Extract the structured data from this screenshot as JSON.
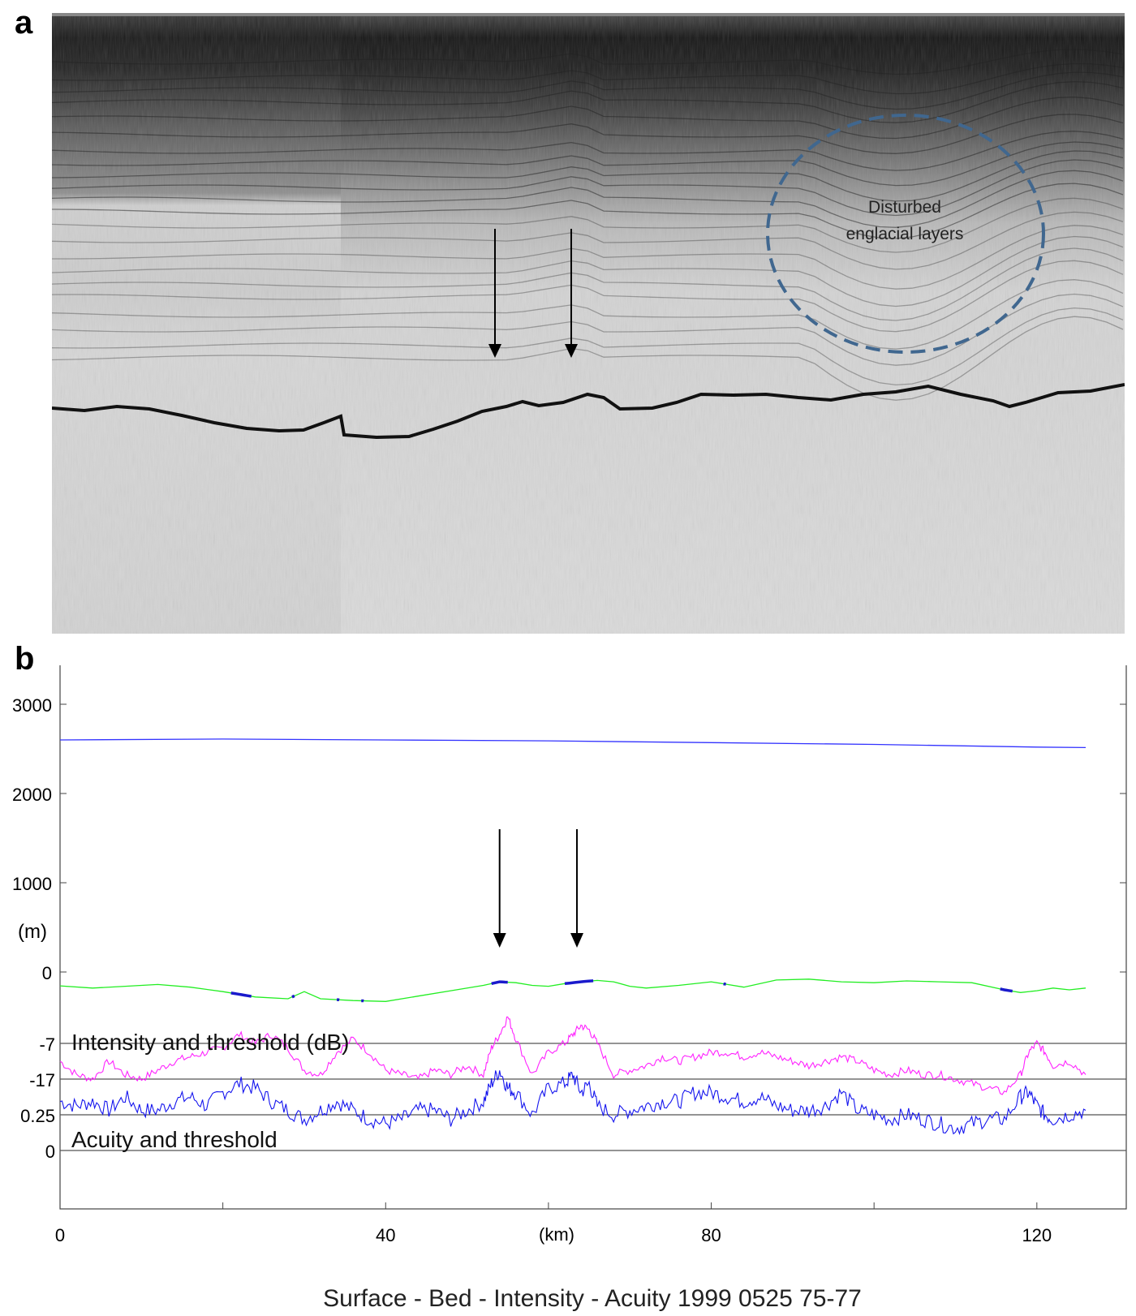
{
  "panel_a": {
    "letter": "a",
    "annotation": "Disturbed englacial layers",
    "annotation_lines": [
      "Disturbed",
      "englacial layers"
    ]
  },
  "panel_b": {
    "letter": "b"
  },
  "colors": {
    "surface": "#3333ff",
    "bed": "#22ee22",
    "bed_highlight": "#1a1acc",
    "intensity": "#ff22ff",
    "acuity": "#1515ee",
    "threshold": "#555555",
    "dashed_circle": "#40678f"
  },
  "chart_data": {
    "type": "line",
    "title": "Surface - Bed - Intensity - Acuity 1999 0525  75-77",
    "xlabel": "(km)",
    "ylabel": "(m)",
    "xlim": [
      0,
      126
    ],
    "ylim": [
      -2500,
      3500
    ],
    "x_ticks": [
      "0",
      "40",
      "80",
      "120"
    ],
    "x_tick_values": [
      0,
      40,
      80,
      120
    ],
    "y_ticks": [
      "3000",
      "2000",
      "1000",
      "0"
    ],
    "y_tick_values": [
      3000,
      2000,
      1000,
      0
    ],
    "grid": false,
    "series": [
      {
        "key": "surface",
        "x": [
          0,
          20,
          40,
          60,
          80,
          100,
          120,
          126
        ],
        "y": [
          2600,
          2610,
          2600,
          2590,
          2570,
          2550,
          2520,
          2515
        ]
      },
      {
        "key": "bed",
        "x": [
          0,
          4,
          8,
          12,
          16,
          20,
          24,
          28,
          30,
          32,
          36,
          40,
          44,
          48,
          52,
          54,
          56,
          58,
          60,
          62,
          64,
          66,
          68,
          70,
          72,
          76,
          80,
          84,
          88,
          92,
          96,
          100,
          104,
          108,
          112,
          116,
          118,
          120,
          122,
          124,
          126
        ],
        "y": [
          -155,
          -180,
          -160,
          -140,
          -170,
          -220,
          -280,
          -300,
          -220,
          -300,
          -320,
          -330,
          -270,
          -210,
          -150,
          -110,
          -120,
          -150,
          -160,
          -130,
          -110,
          -95,
          -110,
          -160,
          -180,
          -150,
          -110,
          -170,
          -90,
          -80,
          -110,
          -120,
          -100,
          -110,
          -120,
          -200,
          -230,
          -210,
          -180,
          -200,
          -180
        ]
      }
    ],
    "bed_highlight_segments": [
      [
        21,
        23.5
      ],
      [
        28.5,
        28.8
      ],
      [
        34,
        34.3
      ],
      [
        37,
        37.3
      ],
      [
        53,
        55
      ],
      [
        62,
        65.5
      ],
      [
        81.5,
        81.8
      ],
      [
        115.5,
        117
      ]
    ],
    "threshold_lines": [
      {
        "label": "-7",
        "y": -800
      },
      {
        "label": "-17",
        "y": -1200
      },
      {
        "label": "0.25",
        "y": -1600
      },
      {
        "label": "0",
        "y": -2000
      }
    ],
    "annotations": [
      "Intensity and threshold (dB)",
      "Acuity and threshold"
    ],
    "arrows_at_km": [
      54,
      63.5
    ],
    "intensity_profile": {
      "x": [
        0,
        2,
        4,
        6,
        8,
        10,
        12,
        14,
        16,
        18,
        20,
        22,
        24,
        26,
        28,
        30,
        32,
        34,
        36,
        38,
        40,
        42,
        44,
        46,
        48,
        50,
        52,
        53,
        54,
        55,
        56,
        58,
        60,
        62,
        63,
        64,
        65,
        66,
        68,
        70,
        72,
        74,
        76,
        78,
        80,
        82,
        84,
        86,
        88,
        90,
        92,
        94,
        96,
        98,
        100,
        102,
        104,
        106,
        108,
        110,
        112,
        114,
        116,
        118,
        119,
        120,
        121,
        122,
        124,
        126
      ],
      "y": [
        -1000,
        -1150,
        -1200,
        -1000,
        -1150,
        -1200,
        -1100,
        -1000,
        -950,
        -900,
        -850,
        -700,
        -800,
        -700,
        -850,
        -1100,
        -1150,
        -900,
        -750,
        -900,
        -1100,
        -1150,
        -1200,
        -1100,
        -1150,
        -1050,
        -1150,
        -850,
        -700,
        -500,
        -750,
        -1150,
        -900,
        -800,
        -700,
        -600,
        -650,
        -800,
        -1150,
        -1100,
        -1050,
        -950,
        -1000,
        -950,
        -900,
        -900,
        -950,
        -900,
        -950,
        -1000,
        -1050,
        -1000,
        -950,
        -1000,
        -1100,
        -1150,
        -1100,
        -1150,
        -1150,
        -1200,
        -1250,
        -1300,
        -1350,
        -1150,
        -900,
        -800,
        -900,
        -1050,
        -1000,
        -1150
      ]
    },
    "acuity_profile": {
      "x": [
        0,
        2,
        4,
        6,
        8,
        10,
        12,
        14,
        16,
        18,
        20,
        22,
        24,
        26,
        28,
        30,
        32,
        34,
        36,
        38,
        40,
        42,
        44,
        46,
        48,
        50,
        52,
        53,
        54,
        55,
        56,
        58,
        60,
        62,
        63,
        64,
        65,
        66,
        68,
        70,
        72,
        74,
        76,
        78,
        80,
        82,
        84,
        86,
        88,
        90,
        92,
        94,
        96,
        98,
        100,
        102,
        104,
        106,
        108,
        110,
        112,
        114,
        116,
        118,
        119,
        120,
        121,
        122,
        124,
        126
      ],
      "y": [
        -1450,
        -1500,
        -1450,
        -1550,
        -1400,
        -1550,
        -1550,
        -1450,
        -1400,
        -1500,
        -1350,
        -1250,
        -1300,
        -1450,
        -1550,
        -1650,
        -1550,
        -1450,
        -1550,
        -1650,
        -1700,
        -1650,
        -1550,
        -1550,
        -1650,
        -1550,
        -1450,
        -1250,
        -1100,
        -1300,
        -1350,
        -1600,
        -1300,
        -1250,
        -1150,
        -1350,
        -1250,
        -1500,
        -1600,
        -1550,
        -1500,
        -1450,
        -1450,
        -1350,
        -1350,
        -1400,
        -1450,
        -1400,
        -1500,
        -1550,
        -1550,
        -1500,
        -1350,
        -1550,
        -1600,
        -1650,
        -1600,
        -1650,
        -1700,
        -1750,
        -1700,
        -1650,
        -1650,
        -1400,
        -1350,
        -1500,
        -1600,
        -1650,
        -1600,
        -1550
      ]
    }
  }
}
